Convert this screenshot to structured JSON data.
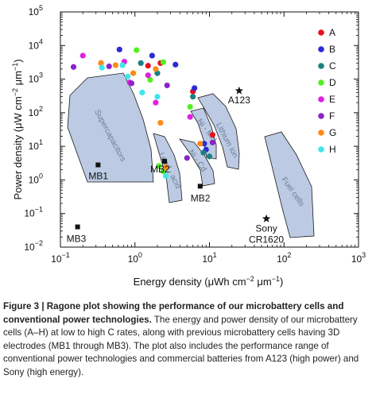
{
  "chart_data": {
    "type": "scatter",
    "xscale": "log",
    "yscale": "log",
    "xlim": [
      0.1,
      1000
    ],
    "ylim": [
      0.01,
      100000
    ],
    "x_ticks": [
      {
        "value": 0.1,
        "base": "10",
        "exp": "−1"
      },
      {
        "value": 1,
        "base": "10",
        "exp": "0"
      },
      {
        "value": 10,
        "base": "10",
        "exp": "1"
      },
      {
        "value": 100,
        "base": "10",
        "exp": "2"
      },
      {
        "value": 1000,
        "base": "10",
        "exp": "3"
      }
    ],
    "y_ticks": [
      {
        "value": 0.01,
        "base": "10",
        "exp": "−2"
      },
      {
        "value": 0.1,
        "base": "10",
        "exp": "−1"
      },
      {
        "value": 1,
        "base": "10",
        "exp": "0"
      },
      {
        "value": 10,
        "base": "10",
        "exp": "1"
      },
      {
        "value": 100,
        "base": "10",
        "exp": "2"
      },
      {
        "value": 1000,
        "base": "10",
        "exp": "3"
      },
      {
        "value": 10000,
        "base": "10",
        "exp": "4"
      },
      {
        "value": 100000,
        "base": "10",
        "exp": "5"
      }
    ],
    "xlabel_main": "Energy density (μWh cm",
    "xlabel_sup1": "−2",
    "xlabel_mid": " μm",
    "xlabel_sup2": "−1",
    "xlabel_end": ")",
    "ylabel_main": "Power density (μW cm",
    "ylabel_sup1": "−2",
    "ylabel_mid": " μm",
    "ylabel_sup2": "−1",
    "ylabel_end": ")",
    "legend_position": "top-right",
    "series": [
      {
        "name": "A",
        "color": "#e8101e",
        "points": [
          [
            2.2,
            3000
          ],
          [
            1.5,
            2500
          ],
          [
            6.0,
            430
          ],
          [
            11,
            22
          ]
        ]
      },
      {
        "name": "B",
        "color": "#2b2bd6",
        "points": [
          [
            0.62,
            7600
          ],
          [
            1.7,
            5000
          ],
          [
            3.5,
            2700
          ],
          [
            6.3,
            540
          ],
          [
            8.5,
            12
          ],
          [
            9.0,
            8
          ]
        ]
      },
      {
        "name": "C",
        "color": "#1c8080",
        "points": [
          [
            1.2,
            3000
          ],
          [
            2.0,
            1500
          ],
          [
            6.0,
            300
          ],
          [
            8.3,
            6.5
          ],
          [
            10,
            5
          ]
        ]
      },
      {
        "name": "D",
        "color": "#55ee22",
        "points": [
          [
            1.05,
            7300
          ],
          [
            2.4,
            3200
          ],
          [
            1.6,
            950
          ],
          [
            5.5,
            150
          ],
          [
            2.4,
            1.8
          ],
          [
            2.1,
            2.6
          ]
        ]
      },
      {
        "name": "E",
        "color": "#e020e0",
        "points": [
          [
            0.2,
            5000
          ],
          [
            0.35,
            3000
          ],
          [
            0.72,
            3300
          ],
          [
            1.5,
            1300
          ],
          [
            0.85,
            800
          ],
          [
            1.9,
            200
          ],
          [
            5.5,
            75
          ]
        ]
      },
      {
        "name": "F",
        "color": "#8a24c8",
        "points": [
          [
            0.15,
            2300
          ],
          [
            0.45,
            2400
          ],
          [
            0.9,
            750
          ],
          [
            2.7,
            650
          ],
          [
            5.0,
            4.5
          ],
          [
            11,
            13
          ]
        ]
      },
      {
        "name": "G",
        "color": "#ff8a15",
        "points": [
          [
            0.35,
            3000
          ],
          [
            0.55,
            2600
          ],
          [
            1.9,
            2000
          ],
          [
            0.95,
            1500
          ],
          [
            2.2,
            50
          ],
          [
            7.5,
            12
          ],
          [
            2.6,
            2.4
          ]
        ]
      },
      {
        "name": "H",
        "color": "#3fe6ea",
        "points": [
          [
            0.36,
            2200
          ],
          [
            0.68,
            2600
          ],
          [
            0.8,
            1200
          ],
          [
            1.25,
            400
          ],
          [
            2.0,
            300
          ],
          [
            2.6,
            1.3
          ]
        ]
      }
    ],
    "markers": [
      {
        "label": "MB1",
        "x": 0.32,
        "y": 2.8
      },
      {
        "label": "MB2",
        "x": 2.5,
        "y": 3.6
      },
      {
        "label": "MB2",
        "x": 7.5,
        "y": 0.65
      },
      {
        "label": "MB3",
        "x": 0.17,
        "y": 0.04
      }
    ],
    "stars": [
      {
        "label": "A123",
        "x": 25,
        "y": 450
      },
      {
        "label": "Sony",
        "label2": "CR1620",
        "x": 58,
        "y": 0.07
      }
    ],
    "regions": [
      {
        "label": "Supercapacitors",
        "angle": 62
      },
      {
        "label": "Lead - acid",
        "angle": 63
      },
      {
        "label": "Ni - Cd",
        "angle": 54
      },
      {
        "label": "Ni - MH",
        "angle": 52
      },
      {
        "label": "Lithium ion",
        "angle": 62
      },
      {
        "label": "Fuel cells",
        "angle": 55
      }
    ]
  },
  "caption": {
    "heading": "Figure 3 | Ragone plot showing the performance of our microbattery cells and conventional power technologies.",
    "body": " The energy and power density of our microbattery cells (A–H) at low to high C rates, along with previous microbattery cells having 3D electrodes (MB1 through MB3). The plot also includes the performance range of conventional power technologies and commercial batteries from A123 (high power) and Sony (high energy)."
  }
}
